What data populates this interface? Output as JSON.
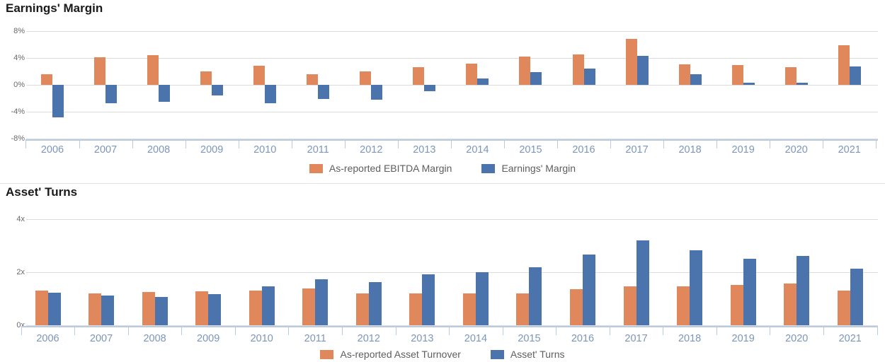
{
  "page": {
    "background": "#ffffff"
  },
  "colors": {
    "orange_series": "#e0875b",
    "blue_series": "#4c74ac",
    "gridline": "#dcdcdc",
    "axis_line": "#b9cbe2",
    "year_label": "#7c96ba",
    "ytick_label": "#696969",
    "legend_text": "#5e5e5e",
    "title_text": "#1a1a1a"
  },
  "chart_data": [
    {
      "type": "bar",
      "title": "Earnings' Margin",
      "xlabel": "",
      "ylabel": "",
      "grid": true,
      "legend_position": "bottom",
      "ylim": [
        -8,
        8
      ],
      "yticks": [
        {
          "value": 8,
          "label": "8%"
        },
        {
          "value": 4,
          "label": "4%"
        },
        {
          "value": 0,
          "label": "0%"
        },
        {
          "value": -4,
          "label": "-4%"
        },
        {
          "value": -8,
          "label": "-8%"
        }
      ],
      "categories": [
        "2006",
        "2007",
        "2008",
        "2009",
        "2010",
        "2011",
        "2012",
        "2013",
        "2014",
        "2015",
        "2016",
        "2017",
        "2018",
        "2019",
        "2020",
        "2021"
      ],
      "series": [
        {
          "name": "As-reported EBITDA Margin",
          "color": "#e0875b",
          "values": [
            1.6,
            4.1,
            4.4,
            2.0,
            2.8,
            1.6,
            2.0,
            2.6,
            3.2,
            4.2,
            4.5,
            6.8,
            3.1,
            3.0,
            2.6,
            5.9
          ]
        },
        {
          "name": "Earnings' Margin",
          "color": "#4c74ac",
          "values": [
            -4.8,
            -2.7,
            -2.5,
            -1.6,
            -2.7,
            -2.1,
            -2.2,
            -0.9,
            1.0,
            1.9,
            2.4,
            4.3,
            1.6,
            0.3,
            0.3,
            2.7
          ]
        }
      ]
    },
    {
      "type": "bar",
      "title": "Asset' Turns",
      "xlabel": "",
      "ylabel": "",
      "grid": true,
      "legend_position": "bottom",
      "ylim": [
        0,
        4
      ],
      "yticks": [
        {
          "value": 4,
          "label": "4x"
        },
        {
          "value": 2,
          "label": "2x"
        },
        {
          "value": 0,
          "label": "0x"
        }
      ],
      "categories": [
        "2006",
        "2007",
        "2008",
        "2009",
        "2010",
        "2011",
        "2012",
        "2013",
        "2014",
        "2015",
        "2016",
        "2017",
        "2018",
        "2019",
        "2020",
        "2021"
      ],
      "series": [
        {
          "name": "As-reported Asset Turnover",
          "color": "#e0875b",
          "values": [
            1.3,
            1.21,
            1.25,
            1.28,
            1.3,
            1.38,
            1.2,
            1.19,
            1.19,
            1.2,
            1.35,
            1.48,
            1.46,
            1.53,
            1.58,
            1.3
          ]
        },
        {
          "name": "Asset' Turns",
          "color": "#4c74ac",
          "values": [
            1.22,
            1.12,
            1.08,
            1.18,
            1.46,
            1.74,
            1.62,
            1.91,
            1.99,
            2.19,
            2.66,
            3.2,
            2.83,
            2.5,
            2.62,
            2.13
          ]
        }
      ]
    }
  ]
}
